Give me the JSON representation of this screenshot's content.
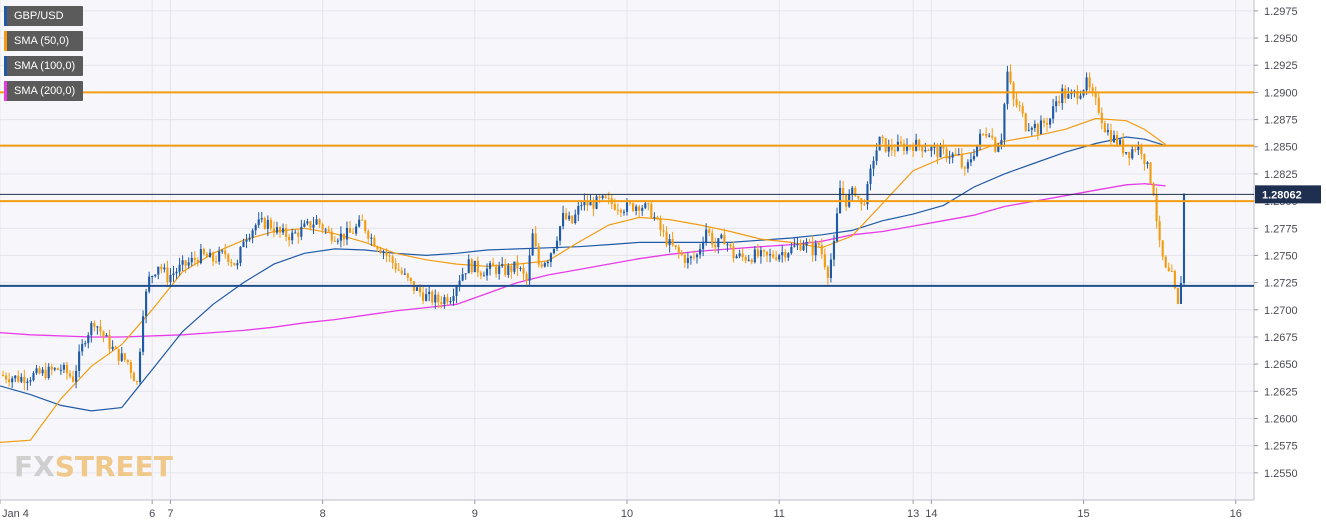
{
  "chart_data": {
    "type": "candlestick",
    "symbol": "GBP/USD",
    "last_price_label": "1.28062",
    "last_price": 1.28062,
    "ylim": [
      1.2525,
      1.2985
    ],
    "y_ticks": [
      "1.2975",
      "1.2950",
      "1.2925",
      "1.2900",
      "1.2875",
      "1.2850",
      "1.2825",
      "1.2800",
      "1.2775",
      "1.2750",
      "1.2725",
      "1.2700",
      "1.2675",
      "1.2650",
      "1.2625",
      "1.2600",
      "1.2575",
      "1.2550"
    ],
    "x_ticks": [
      "Jan 4",
      "6",
      "7",
      "8",
      "9",
      "10",
      "11",
      "13",
      "14",
      "15",
      "16"
    ],
    "horizontal_levels": [
      {
        "value": 1.29,
        "color": "#f39c12"
      },
      {
        "value": 1.2851,
        "color": "#f39c12"
      },
      {
        "value": 1.28,
        "color": "#f39c12"
      },
      {
        "value": 1.2722,
        "color": "#1f4e8c"
      }
    ],
    "legend": [
      {
        "label": "GBP/USD",
        "color": "#1f5aa6"
      },
      {
        "label": "SMA (50,0)",
        "color": "#f39c12"
      },
      {
        "label": "SMA (100,0)",
        "color": "#1f5aa6"
      },
      {
        "label": "SMA (200,0)",
        "color": "#e83be8"
      }
    ],
    "price_path": [
      [
        0,
        1.264
      ],
      [
        3,
        1.2637
      ],
      [
        5,
        1.2639
      ],
      [
        8,
        1.2643
      ],
      [
        10,
        1.2646
      ],
      [
        12,
        1.2637
      ],
      [
        14,
        1.2675
      ],
      [
        15.5,
        1.269
      ],
      [
        17,
        1.2676
      ],
      [
        19,
        1.266
      ],
      [
        21,
        1.2652
      ],
      [
        22.5,
        1.2632
      ],
      [
        23.5,
        1.27
      ],
      [
        24.5,
        1.2728
      ],
      [
        26,
        1.2742
      ],
      [
        27.5,
        1.273
      ],
      [
        29.5,
        1.2738
      ],
      [
        31,
        1.2743
      ],
      [
        33,
        1.275
      ],
      [
        35,
        1.2746
      ],
      [
        37,
        1.2752
      ],
      [
        39,
        1.274
      ],
      [
        40,
        1.2766
      ],
      [
        42,
        1.2778
      ],
      [
        44,
        1.278
      ],
      [
        46,
        1.277
      ],
      [
        48,
        1.2768
      ],
      [
        50,
        1.2775
      ],
      [
        52,
        1.2782
      ],
      [
        54,
        1.277
      ],
      [
        56,
        1.2768
      ],
      [
        57.5,
        1.277
      ],
      [
        59.5,
        1.278
      ],
      [
        61,
        1.2766
      ],
      [
        63,
        1.2754
      ],
      [
        65,
        1.274
      ],
      [
        66.5,
        1.273
      ],
      [
        68,
        1.272
      ],
      [
        70,
        1.2712
      ],
      [
        72,
        1.2708
      ],
      [
        74,
        1.2713
      ],
      [
        75.5,
        1.273
      ],
      [
        77,
        1.2742
      ],
      [
        79,
        1.2736
      ],
      [
        81,
        1.2738
      ],
      [
        83,
        1.2736
      ],
      [
        85,
        1.274
      ],
      [
        86.5,
        1.2726
      ],
      [
        87.5,
        1.2768
      ],
      [
        88.5,
        1.2742
      ],
      [
        90,
        1.2748
      ],
      [
        91,
        1.276
      ],
      [
        92.5,
        1.2785
      ],
      [
        94,
        1.278
      ],
      [
        95.5,
        1.2798
      ],
      [
        97,
        1.2797
      ],
      [
        99,
        1.28
      ],
      [
        101,
        1.2797
      ],
      [
        103,
        1.2794
      ],
      [
        105,
        1.2797
      ],
      [
        107,
        1.279
      ],
      [
        108.5,
        1.2773
      ],
      [
        110,
        1.276
      ],
      [
        111.5,
        1.2752
      ],
      [
        113,
        1.2745
      ],
      [
        114.5,
        1.275
      ],
      [
        116,
        1.2775
      ],
      [
        117.5,
        1.2758
      ],
      [
        119,
        1.2766
      ],
      [
        120.5,
        1.275
      ],
      [
        122,
        1.2748
      ],
      [
        124,
        1.275
      ],
      [
        126,
        1.2748
      ],
      [
        128,
        1.2752
      ],
      [
        130,
        1.2756
      ],
      [
        132,
        1.2762
      ],
      [
        133.5,
        1.2755
      ],
      [
        134.5,
        1.276
      ],
      [
        135,
        1.2752
      ],
      [
        136,
        1.2735
      ],
      [
        137,
        1.2758
      ],
      [
        138,
        1.2812
      ],
      [
        139,
        1.28
      ],
      [
        140.5,
        1.281
      ],
      [
        141.5,
        1.2795
      ],
      [
        142.5,
        1.281
      ],
      [
        143.5,
        1.284
      ],
      [
        144.5,
        1.2855
      ],
      [
        146,
        1.2848
      ],
      [
        148,
        1.285
      ],
      [
        150,
        1.2852
      ],
      [
        152,
        1.285
      ],
      [
        154,
        1.2845
      ],
      [
        156,
        1.2843
      ],
      [
        157.5,
        1.284
      ],
      [
        158.5,
        1.2825
      ],
      [
        159.5,
        1.284
      ],
      [
        161,
        1.2858
      ],
      [
        162.5,
        1.2866
      ],
      [
        163.5,
        1.285
      ],
      [
        164.5,
        1.286
      ],
      [
        165.5,
        1.2918
      ],
      [
        166.5,
        1.2892
      ],
      [
        167.5,
        1.2885
      ],
      [
        168.5,
        1.287
      ],
      [
        169.5,
        1.2872
      ],
      [
        170.5,
        1.2866
      ],
      [
        171.5,
        1.2872
      ],
      [
        172.5,
        1.2876
      ],
      [
        173.5,
        1.2892
      ],
      [
        174.5,
        1.29
      ],
      [
        175.5,
        1.2895
      ],
      [
        177,
        1.29
      ],
      [
        178.5,
        1.2908
      ],
      [
        179.5,
        1.2895
      ],
      [
        180.5,
        1.2885
      ],
      [
        181.5,
        1.2868
      ],
      [
        182.5,
        1.286
      ],
      [
        183.5,
        1.2855
      ],
      [
        184.5,
        1.2848
      ],
      [
        185.5,
        1.2845
      ],
      [
        186.5,
        1.285
      ],
      [
        187.5,
        1.2848
      ],
      [
        188.5,
        1.283
      ],
      [
        189.5,
        1.281
      ],
      [
        190.5,
        1.2758
      ],
      [
        191.5,
        1.2735
      ],
      [
        192.5,
        1.273
      ],
      [
        193.5,
        1.2702
      ],
      [
        194,
        1.2728
      ],
      [
        194.8,
        1.281
      ]
    ],
    "sma_50": [
      [
        0,
        1.2578
      ],
      [
        5,
        1.258
      ],
      [
        10,
        1.2618
      ],
      [
        15,
        1.2648
      ],
      [
        20,
        1.2668
      ],
      [
        25,
        1.27
      ],
      [
        30,
        1.2735
      ],
      [
        35,
        1.2752
      ],
      [
        40,
        1.2764
      ],
      [
        45,
        1.2772
      ],
      [
        50,
        1.2775
      ],
      [
        55,
        1.277
      ],
      [
        60,
        1.2762
      ],
      [
        65,
        1.2752
      ],
      [
        70,
        1.2746
      ],
      [
        75,
        1.2742
      ],
      [
        80,
        1.274
      ],
      [
        85,
        1.2742
      ],
      [
        90,
        1.2745
      ],
      [
        95,
        1.2762
      ],
      [
        100,
        1.2778
      ],
      [
        105,
        1.2785
      ],
      [
        110,
        1.2783
      ],
      [
        115,
        1.2778
      ],
      [
        120,
        1.2772
      ],
      [
        125,
        1.2765
      ],
      [
        130,
        1.2762
      ],
      [
        135,
        1.2757
      ],
      [
        140,
        1.2768
      ],
      [
        145,
        1.2798
      ],
      [
        150,
        1.2828
      ],
      [
        155,
        1.284
      ],
      [
        160,
        1.2845
      ],
      [
        165,
        1.2855
      ],
      [
        170,
        1.286
      ],
      [
        175,
        1.2866
      ],
      [
        180,
        1.2876
      ],
      [
        185,
        1.2874
      ],
      [
        188,
        1.2866
      ],
      [
        191.5,
        1.2852
      ]
    ],
    "sma_100": [
      [
        0,
        1.263
      ],
      [
        5,
        1.2622
      ],
      [
        10,
        1.2612
      ],
      [
        15,
        1.2607
      ],
      [
        20,
        1.261
      ],
      [
        25,
        1.2645
      ],
      [
        30,
        1.268
      ],
      [
        35,
        1.2705
      ],
      [
        40,
        1.2725
      ],
      [
        45,
        1.2742
      ],
      [
        50,
        1.2752
      ],
      [
        55,
        1.2756
      ],
      [
        60,
        1.2755
      ],
      [
        65,
        1.2752
      ],
      [
        70,
        1.275
      ],
      [
        75,
        1.2752
      ],
      [
        80,
        1.2755
      ],
      [
        85,
        1.2756
      ],
      [
        90,
        1.2757
      ],
      [
        95,
        1.2758
      ],
      [
        100,
        1.276
      ],
      [
        105,
        1.2762
      ],
      [
        110,
        1.2762
      ],
      [
        115,
        1.2762
      ],
      [
        120,
        1.2762
      ],
      [
        125,
        1.2764
      ],
      [
        130,
        1.2766
      ],
      [
        135,
        1.2769
      ],
      [
        140,
        1.2773
      ],
      [
        145,
        1.2782
      ],
      [
        150,
        1.2788
      ],
      [
        155,
        1.2796
      ],
      [
        160,
        1.2813
      ],
      [
        165,
        1.2825
      ],
      [
        170,
        1.2835
      ],
      [
        175,
        1.2845
      ],
      [
        180,
        1.2853
      ],
      [
        185,
        1.2859
      ],
      [
        188,
        1.2857
      ],
      [
        191.5,
        1.2851
      ]
    ],
    "sma_200": [
      [
        0,
        1.2679
      ],
      [
        5,
        1.2677
      ],
      [
        10,
        1.2676
      ],
      [
        15,
        1.2675
      ],
      [
        20,
        1.2675
      ],
      [
        25,
        1.2676
      ],
      [
        30,
        1.2677
      ],
      [
        35,
        1.2679
      ],
      [
        40,
        1.2681
      ],
      [
        45,
        1.2684
      ],
      [
        50,
        1.2688
      ],
      [
        55,
        1.2691
      ],
      [
        60,
        1.2695
      ],
      [
        65,
        1.2699
      ],
      [
        70,
        1.2702
      ],
      [
        75,
        1.2705
      ],
      [
        80,
        1.2715
      ],
      [
        85,
        1.2725
      ],
      [
        90,
        1.2732
      ],
      [
        95,
        1.2737
      ],
      [
        100,
        1.2742
      ],
      [
        105,
        1.2747
      ],
      [
        110,
        1.2751
      ],
      [
        115,
        1.2754
      ],
      [
        120,
        1.2756
      ],
      [
        125,
        1.2758
      ],
      [
        130,
        1.276
      ],
      [
        135,
        1.2763
      ],
      [
        140,
        1.2769
      ],
      [
        145,
        1.2772
      ],
      [
        150,
        1.2777
      ],
      [
        155,
        1.2782
      ],
      [
        160,
        1.2787
      ],
      [
        165,
        1.2795
      ],
      [
        170,
        1.28
      ],
      [
        175,
        1.2805
      ],
      [
        180,
        1.281
      ],
      [
        185,
        1.2815
      ],
      [
        188,
        1.2816
      ],
      [
        191.5,
        1.2814
      ]
    ],
    "x_tick_positions": [
      0,
      25,
      28,
      53,
      78,
      103,
      128,
      150,
      153,
      178,
      203
    ],
    "x_range": [
      0,
      206
    ]
  },
  "logo": {
    "part1": "FX",
    "part2": "STREET"
  }
}
